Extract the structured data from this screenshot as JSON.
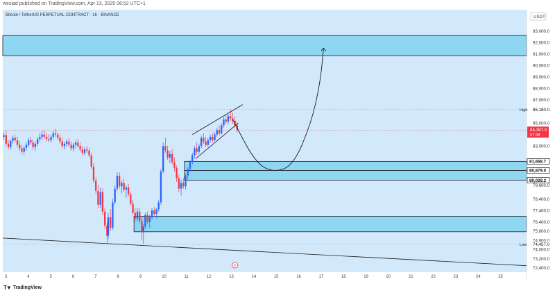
{
  "header": {
    "publish_line": "wesiad published on TradingView.com, Apr 13, 2025 06:52 UTC+1"
  },
  "footer": {
    "brand": "TradingView",
    "brand_icon": "tradingview-logo-icon"
  },
  "colors": {
    "background": "#d2e8fb",
    "zone_fill": "#8fd6f2",
    "candle_up": "#2962ff",
    "candle_down": "#f23645",
    "price_tag": "#f23645"
  },
  "chart_data": {
    "type": "candlestick",
    "title": "Bitcoin / TetherUS PERPETUAL CONTRACT · 1h · BINANCE",
    "currency": "USDT",
    "ylim": [
      72400,
      94000
    ],
    "xlim": [
      2.85,
      26.2
    ],
    "y_ticks": [
      "93,000.0",
      "92,000.0",
      "91,000.0",
      "90,000.0",
      "89,000.0",
      "88,000.0",
      "87,000.0",
      "85,000.0",
      "83,000.0",
      "81,000.0",
      "79,600.0",
      "78,400.0",
      "77,400.0",
      "76,400.0",
      "75,600.0",
      "74,800.0",
      "74,000.0",
      "73,200.0",
      "72,400.0"
    ],
    "y_tick_values": [
      93000,
      92000,
      91000,
      90000,
      89000,
      88000,
      87000,
      85000,
      83000,
      81000,
      79600,
      78400,
      77400,
      76400,
      75600,
      74800,
      74000,
      73200,
      72400
    ],
    "x_ticks": [
      "3",
      "4",
      "5",
      "6",
      "7",
      "8",
      "9",
      "10",
      "11",
      "12",
      "13",
      "14",
      "15",
      "16",
      "17",
      "18",
      "19",
      "20",
      "21",
      "22",
      "23",
      "24",
      "25"
    ],
    "x_tick_values": [
      3,
      4,
      5,
      6,
      7,
      8,
      9,
      10,
      11,
      12,
      13,
      14,
      15,
      16,
      17,
      18,
      19,
      20,
      21,
      22,
      23,
      24,
      25
    ],
    "price_labels": [
      {
        "label": "High",
        "value": "86,180.0",
        "y": 86180,
        "style": "plain"
      },
      {
        "value": "84,387.9",
        "y": 84387.9,
        "sub": "07:48",
        "style": "current"
      },
      {
        "value": "81,668.7",
        "y": 81668.7,
        "style": "box"
      },
      {
        "value": "80,879.0",
        "y": 80879,
        "style": "box"
      },
      {
        "value": "80,028.2",
        "y": 80028.2,
        "style": "box"
      },
      {
        "label": "Low",
        "value": "74,457.0",
        "y": 74457,
        "style": "plain"
      }
    ],
    "zones": [
      {
        "x0": 2.85,
        "x1": 26.2,
        "y0": 90850,
        "y1": 92600
      },
      {
        "x0": 10.95,
        "x1": 26.2,
        "y0": 80028.2,
        "y1": 81668.7
      },
      {
        "x0": 8.7,
        "x1": 26.2,
        "y0": 75550,
        "y1": 76900
      }
    ],
    "zone_midline": 80879,
    "channel": {
      "upper": [
        [
          11.3,
          84000
        ],
        [
          13.55,
          86600
        ]
      ],
      "lower": [
        [
          11.45,
          81900
        ],
        [
          13.35,
          85000
        ]
      ]
    },
    "projection": [
      [
        13.1,
        85300
      ],
      [
        14.1,
        81600
      ],
      [
        14.9,
        80700
      ],
      [
        15.8,
        81300
      ],
      [
        16.6,
        85000
      ],
      [
        17.0,
        88500
      ],
      [
        17.15,
        91500
      ]
    ],
    "trendline": [
      [
        2.85,
        75000
      ],
      [
        26.2,
        72600
      ]
    ],
    "series": [
      {
        "x": 2.9,
        "o": 83800,
        "h": 84200,
        "l": 83500,
        "c": 83950
      },
      {
        "x": 3.0,
        "o": 83950,
        "h": 84400,
        "l": 83000,
        "c": 83200
      },
      {
        "x": 3.1,
        "o": 83200,
        "h": 83500,
        "l": 82700,
        "c": 82900
      },
      {
        "x": 3.2,
        "o": 82900,
        "h": 83600,
        "l": 82700,
        "c": 83450
      },
      {
        "x": 3.3,
        "o": 83450,
        "h": 83900,
        "l": 83200,
        "c": 83700
      },
      {
        "x": 3.4,
        "o": 83700,
        "h": 84000,
        "l": 83300,
        "c": 83500
      },
      {
        "x": 3.5,
        "o": 83500,
        "h": 83800,
        "l": 82900,
        "c": 83100
      },
      {
        "x": 3.6,
        "o": 83100,
        "h": 83400,
        "l": 82600,
        "c": 82800
      },
      {
        "x": 3.7,
        "o": 82800,
        "h": 83100,
        "l": 82300,
        "c": 82500
      },
      {
        "x": 3.8,
        "o": 82500,
        "h": 83000,
        "l": 82200,
        "c": 82850
      },
      {
        "x": 3.9,
        "o": 82850,
        "h": 83300,
        "l": 82600,
        "c": 83100
      },
      {
        "x": 4.0,
        "o": 83100,
        "h": 83700,
        "l": 82900,
        "c": 83500
      },
      {
        "x": 4.1,
        "o": 83500,
        "h": 83800,
        "l": 83100,
        "c": 83300
      },
      {
        "x": 4.2,
        "o": 83300,
        "h": 83600,
        "l": 82700,
        "c": 82900
      },
      {
        "x": 4.3,
        "o": 82900,
        "h": 83400,
        "l": 82600,
        "c": 83200
      },
      {
        "x": 4.4,
        "o": 83200,
        "h": 83800,
        "l": 83000,
        "c": 83600
      },
      {
        "x": 4.5,
        "o": 83600,
        "h": 84100,
        "l": 83400,
        "c": 83800
      },
      {
        "x": 4.6,
        "o": 83800,
        "h": 84300,
        "l": 83500,
        "c": 84000
      },
      {
        "x": 4.7,
        "o": 84000,
        "h": 84400,
        "l": 83600,
        "c": 83800
      },
      {
        "x": 4.8,
        "o": 83800,
        "h": 84100,
        "l": 83400,
        "c": 83600
      },
      {
        "x": 4.9,
        "o": 83600,
        "h": 84000,
        "l": 83300,
        "c": 83500
      },
      {
        "x": 5.0,
        "o": 83500,
        "h": 84000,
        "l": 83300,
        "c": 83800
      },
      {
        "x": 5.1,
        "o": 83800,
        "h": 84300,
        "l": 83600,
        "c": 84100
      },
      {
        "x": 5.2,
        "o": 84100,
        "h": 84500,
        "l": 83800,
        "c": 84000
      },
      {
        "x": 5.3,
        "o": 84000,
        "h": 84200,
        "l": 83500,
        "c": 83700
      },
      {
        "x": 5.4,
        "o": 83700,
        "h": 84000,
        "l": 83200,
        "c": 83400
      },
      {
        "x": 5.5,
        "o": 83400,
        "h": 83700,
        "l": 82800,
        "c": 83000
      },
      {
        "x": 5.6,
        "o": 83000,
        "h": 83400,
        "l": 82700,
        "c": 83200
      },
      {
        "x": 5.7,
        "o": 83200,
        "h": 83600,
        "l": 82900,
        "c": 83400
      },
      {
        "x": 5.8,
        "o": 83400,
        "h": 83700,
        "l": 82900,
        "c": 83100
      },
      {
        "x": 5.9,
        "o": 83100,
        "h": 83400,
        "l": 82600,
        "c": 82800
      },
      {
        "x": 6.0,
        "o": 82800,
        "h": 83300,
        "l": 82500,
        "c": 83100
      },
      {
        "x": 6.1,
        "o": 83100,
        "h": 83500,
        "l": 82800,
        "c": 83300
      },
      {
        "x": 6.2,
        "o": 83300,
        "h": 83600,
        "l": 82900,
        "c": 83000
      },
      {
        "x": 6.3,
        "o": 83000,
        "h": 83300,
        "l": 82500,
        "c": 82700
      },
      {
        "x": 6.4,
        "o": 82700,
        "h": 83000,
        "l": 82200,
        "c": 82400
      },
      {
        "x": 6.5,
        "o": 82400,
        "h": 82900,
        "l": 82200,
        "c": 82700
      },
      {
        "x": 6.6,
        "o": 82700,
        "h": 83000,
        "l": 82400,
        "c": 82600
      },
      {
        "x": 6.7,
        "o": 82600,
        "h": 82800,
        "l": 82000,
        "c": 82200
      },
      {
        "x": 6.8,
        "o": 82200,
        "h": 82400,
        "l": 81000,
        "c": 81200
      },
      {
        "x": 6.9,
        "o": 81200,
        "h": 81500,
        "l": 79800,
        "c": 80000
      },
      {
        "x": 7.0,
        "o": 80000,
        "h": 80300,
        "l": 78800,
        "c": 79100
      },
      {
        "x": 7.1,
        "o": 79100,
        "h": 79600,
        "l": 77600,
        "c": 77900
      },
      {
        "x": 7.2,
        "o": 77900,
        "h": 79400,
        "l": 77600,
        "c": 79000
      },
      {
        "x": 7.3,
        "o": 79000,
        "h": 79300,
        "l": 77000,
        "c": 77300
      },
      {
        "x": 7.4,
        "o": 77300,
        "h": 77600,
        "l": 75800,
        "c": 76100
      },
      {
        "x": 7.5,
        "o": 76100,
        "h": 76400,
        "l": 74600,
        "c": 75200
      },
      {
        "x": 7.55,
        "o": 75200,
        "h": 77200,
        "l": 74900,
        "c": 76800
      },
      {
        "x": 7.65,
        "o": 76800,
        "h": 77500,
        "l": 75600,
        "c": 75900
      },
      {
        "x": 7.75,
        "o": 75900,
        "h": 78400,
        "l": 75700,
        "c": 78100
      },
      {
        "x": 7.85,
        "o": 78100,
        "h": 79600,
        "l": 77900,
        "c": 79300
      },
      {
        "x": 7.95,
        "o": 79300,
        "h": 80700,
        "l": 79100,
        "c": 80400
      },
      {
        "x": 8.05,
        "o": 80400,
        "h": 80700,
        "l": 79300,
        "c": 79500
      },
      {
        "x": 8.15,
        "o": 79500,
        "h": 80000,
        "l": 78900,
        "c": 79800
      },
      {
        "x": 8.25,
        "o": 79800,
        "h": 80200,
        "l": 79000,
        "c": 79200
      },
      {
        "x": 8.35,
        "o": 79200,
        "h": 79600,
        "l": 78500,
        "c": 79400
      },
      {
        "x": 8.45,
        "o": 79400,
        "h": 79700,
        "l": 78600,
        "c": 78800
      },
      {
        "x": 8.55,
        "o": 78800,
        "h": 79000,
        "l": 77800,
        "c": 78000
      },
      {
        "x": 8.65,
        "o": 78000,
        "h": 78300,
        "l": 77000,
        "c": 77200
      },
      {
        "x": 8.75,
        "o": 77200,
        "h": 77600,
        "l": 76400,
        "c": 76700
      },
      {
        "x": 8.85,
        "o": 76700,
        "h": 77600,
        "l": 76500,
        "c": 77300
      },
      {
        "x": 8.95,
        "o": 77300,
        "h": 77600,
        "l": 76300,
        "c": 76500
      },
      {
        "x": 9.05,
        "o": 76500,
        "h": 76800,
        "l": 74800,
        "c": 75500
      },
      {
        "x": 9.12,
        "o": 75500,
        "h": 76200,
        "l": 74500,
        "c": 76000
      },
      {
        "x": 9.2,
        "o": 76000,
        "h": 77200,
        "l": 75800,
        "c": 77000
      },
      {
        "x": 9.3,
        "o": 77000,
        "h": 77300,
        "l": 76200,
        "c": 76400
      },
      {
        "x": 9.4,
        "o": 76400,
        "h": 77000,
        "l": 75900,
        "c": 76800
      },
      {
        "x": 9.5,
        "o": 76800,
        "h": 77600,
        "l": 76600,
        "c": 77400
      },
      {
        "x": 9.6,
        "o": 77400,
        "h": 77700,
        "l": 76900,
        "c": 77100
      },
      {
        "x": 9.7,
        "o": 77100,
        "h": 77600,
        "l": 76700,
        "c": 77500
      },
      {
        "x": 9.8,
        "o": 77500,
        "h": 78300,
        "l": 77300,
        "c": 78100
      },
      {
        "x": 9.9,
        "o": 78100,
        "h": 81000,
        "l": 77900,
        "c": 80800
      },
      {
        "x": 10.0,
        "o": 80800,
        "h": 83300,
        "l": 80600,
        "c": 83000
      },
      {
        "x": 10.1,
        "o": 83000,
        "h": 83700,
        "l": 82400,
        "c": 82600
      },
      {
        "x": 10.2,
        "o": 82600,
        "h": 83000,
        "l": 81800,
        "c": 82000
      },
      {
        "x": 10.3,
        "o": 82000,
        "h": 82600,
        "l": 81500,
        "c": 82300
      },
      {
        "x": 10.4,
        "o": 82300,
        "h": 82700,
        "l": 81400,
        "c": 81600
      },
      {
        "x": 10.5,
        "o": 81600,
        "h": 82000,
        "l": 80800,
        "c": 81100
      },
      {
        "x": 10.6,
        "o": 81100,
        "h": 81300,
        "l": 79900,
        "c": 80200
      },
      {
        "x": 10.7,
        "o": 80200,
        "h": 80500,
        "l": 79000,
        "c": 79300
      },
      {
        "x": 10.8,
        "o": 79300,
        "h": 80100,
        "l": 78700,
        "c": 79800
      },
      {
        "x": 10.9,
        "o": 79800,
        "h": 80200,
        "l": 79300,
        "c": 79500
      },
      {
        "x": 11.0,
        "o": 79500,
        "h": 80600,
        "l": 79200,
        "c": 80400
      },
      {
        "x": 11.1,
        "o": 80400,
        "h": 81200,
        "l": 80100,
        "c": 81000
      },
      {
        "x": 11.2,
        "o": 81000,
        "h": 81800,
        "l": 80800,
        "c": 81600
      },
      {
        "x": 11.3,
        "o": 81600,
        "h": 82400,
        "l": 81400,
        "c": 82200
      },
      {
        "x": 11.4,
        "o": 82200,
        "h": 83000,
        "l": 81900,
        "c": 82800
      },
      {
        "x": 11.5,
        "o": 82800,
        "h": 83300,
        "l": 82200,
        "c": 82500
      },
      {
        "x": 11.6,
        "o": 82500,
        "h": 83200,
        "l": 82300,
        "c": 83000
      },
      {
        "x": 11.7,
        "o": 83000,
        "h": 83900,
        "l": 82800,
        "c": 83700
      },
      {
        "x": 11.8,
        "o": 83700,
        "h": 84100,
        "l": 83200,
        "c": 83400
      },
      {
        "x": 11.9,
        "o": 83400,
        "h": 83800,
        "l": 82900,
        "c": 83100
      },
      {
        "x": 12.0,
        "o": 83100,
        "h": 83700,
        "l": 82900,
        "c": 83500
      },
      {
        "x": 12.1,
        "o": 83500,
        "h": 84000,
        "l": 83300,
        "c": 83800
      },
      {
        "x": 12.2,
        "o": 83800,
        "h": 84100,
        "l": 83300,
        "c": 83500
      },
      {
        "x": 12.3,
        "o": 83500,
        "h": 84200,
        "l": 83400,
        "c": 84000
      },
      {
        "x": 12.4,
        "o": 84000,
        "h": 84600,
        "l": 83800,
        "c": 84400
      },
      {
        "x": 12.5,
        "o": 84400,
        "h": 84800,
        "l": 83900,
        "c": 84100
      },
      {
        "x": 12.6,
        "o": 84100,
        "h": 85000,
        "l": 84000,
        "c": 84800
      },
      {
        "x": 12.7,
        "o": 84800,
        "h": 85500,
        "l": 84600,
        "c": 85300
      },
      {
        "x": 12.8,
        "o": 85300,
        "h": 85700,
        "l": 84900,
        "c": 85100
      },
      {
        "x": 12.9,
        "o": 85100,
        "h": 85800,
        "l": 84900,
        "c": 85600
      },
      {
        "x": 13.0,
        "o": 85600,
        "h": 86180,
        "l": 85200,
        "c": 85400
      },
      {
        "x": 13.1,
        "o": 85400,
        "h": 85900,
        "l": 84900,
        "c": 85200
      },
      {
        "x": 13.2,
        "o": 85200,
        "h": 85600,
        "l": 84600,
        "c": 84800
      },
      {
        "x": 13.3,
        "o": 84800,
        "h": 85100,
        "l": 84200,
        "c": 84388
      }
    ]
  }
}
